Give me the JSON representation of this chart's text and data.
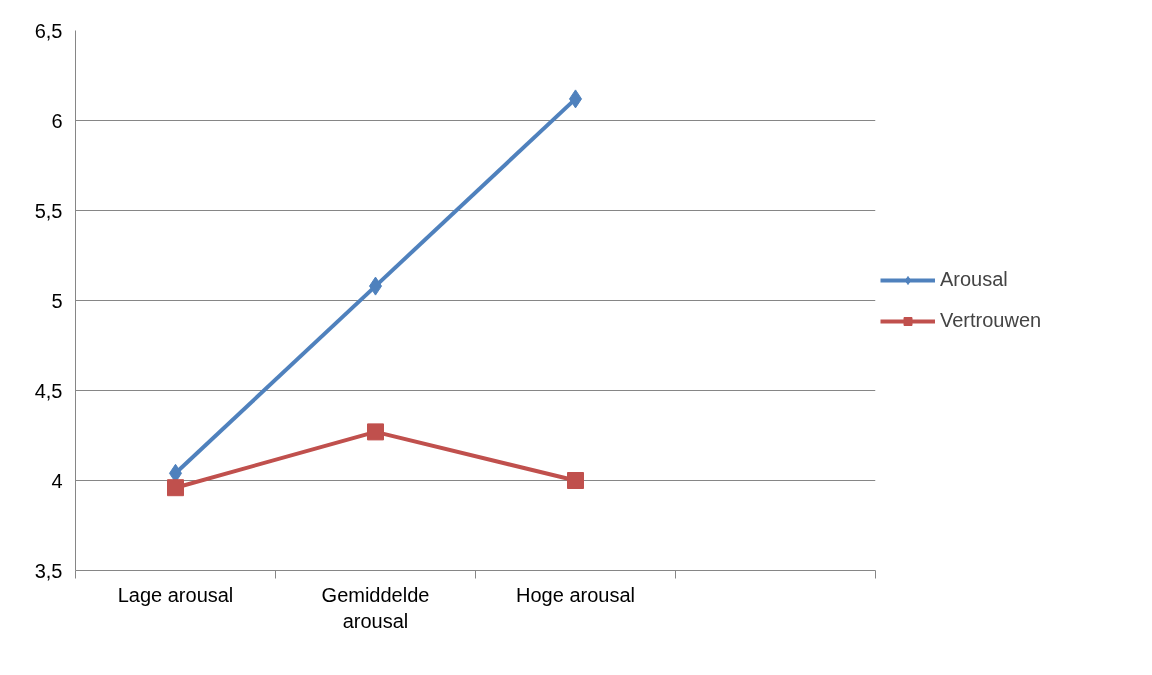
{
  "chart_data": {
    "type": "line",
    "categories": [
      "Lage arousal",
      "Gemiddelde arousal",
      "Hoge arousal",
      null
    ],
    "series": [
      {
        "name": "Arousal",
        "color": "#4f81bd",
        "marker": "diamond",
        "values": [
          4.04,
          5.08,
          6.12,
          null
        ]
      },
      {
        "name": "Vertrouwen",
        "color": "#c0504d",
        "marker": "square",
        "values": [
          3.96,
          4.27,
          4.0,
          null
        ]
      }
    ],
    "ylim": [
      3.5,
      6.5
    ],
    "yticks": [
      {
        "value": 3.5,
        "label": "3,5"
      },
      4,
      {
        "value": 4.5,
        "label": "4,5"
      },
      5,
      {
        "value": 5.5,
        "label": "5,5"
      },
      6,
      {
        "value": 6.5,
        "label": "6,5"
      }
    ],
    "grid": "y",
    "legend": "right",
    "line_style": "solid"
  }
}
